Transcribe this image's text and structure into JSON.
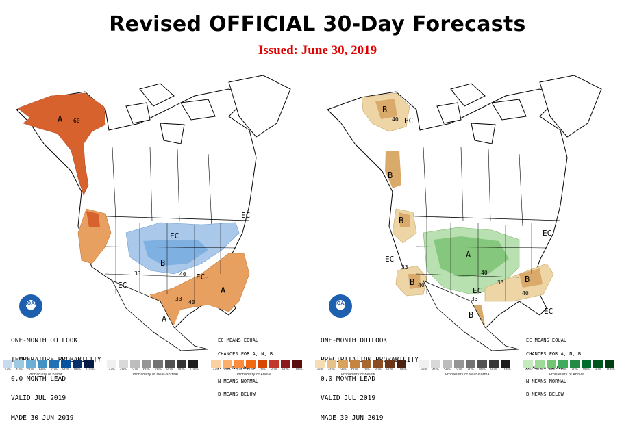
{
  "header": {
    "title": "Revised OFFICIAL 30-Day Forecasts",
    "issued": "Issued: June 30, 2019"
  },
  "colors": {
    "title": "#000000",
    "issued": "#e00000",
    "below_light": "#a9c8ea",
    "below_mid": "#7fb0e2",
    "above_light": "#f2c896",
    "above_mid": "#e8a060",
    "above_dark": "#d8622e",
    "precip_dry_light": "#edd5a6",
    "precip_dry_mid": "#d9aa6a",
    "precip_wet_light": "#b9e0b0",
    "precip_wet_mid": "#85c77c"
  },
  "temperature_map": {
    "panel_text": [
      "ONE-MONTH OUTLOOK",
      "TEMPERATURE PROBABILITY",
      "0.0 MONTH LEAD",
      "VALID JUL 2019",
      "MADE 30 JUN 2019"
    ],
    "legend_text": [
      "EC MEANS EQUAL",
      "CHANCES FOR A, N, B",
      "A MEANS ABOVE",
      "N MEANS NORMAL",
      "B MEANS BELOW"
    ],
    "labels": {
      "alaska_a": "A",
      "alaska_60": "60",
      "ec_northeast": "EC",
      "ec_midwest": "EC",
      "b_plains": "B",
      "b_33": "33",
      "b_40": "40",
      "ec_southwest": "EC",
      "ec_southeast": "EC",
      "a_east": "A",
      "a_texas": "A",
      "a_33": "33",
      "a_40": "40"
    }
  },
  "precipitation_map": {
    "panel_text": [
      "ONE-MONTH OUTLOOK",
      "PRECIPITATION PROBABILITY",
      "0.0 MONTH LEAD",
      "VALID JUL 2019",
      "MADE 30 JUN 2019"
    ],
    "legend_text": [
      "EC MEANS EQUAL",
      "CHANCES FOR A, N, B",
      "A MEANS ABOVE",
      "N MEANS NORMAL",
      "B MEANS BELOW"
    ],
    "labels": {
      "b_alaska": "B",
      "b_alaska_40": "40",
      "ec_alaska": "EC",
      "b_bc": "B",
      "b_pnw": "B",
      "ec_west": "EC",
      "ec_ne": "EC",
      "a_center": "A",
      "a_40": "40",
      "b_southwest": "B",
      "b_sw_40": "40",
      "b_sw_33": "33",
      "b_texas": "B",
      "ec_texas": "EC",
      "ec_33": "33",
      "b_se": "B",
      "b_se_40": "40",
      "b_se_33": "33",
      "ec_florida": "EC"
    }
  },
  "scales": {
    "ticks": [
      "33%",
      "40%",
      "50%",
      "60%",
      "70%",
      "80%",
      "90%",
      "100%"
    ],
    "temp_below": "Probability of Below",
    "temp_normal": "Probability of Near-Normal",
    "temp_above": "Probability of Above",
    "precip_below": "Probability of Below",
    "precip_normal": "Probability of Near-Normal",
    "precip_above": "Probability of Above"
  },
  "logo": {
    "text": "NOAA"
  }
}
